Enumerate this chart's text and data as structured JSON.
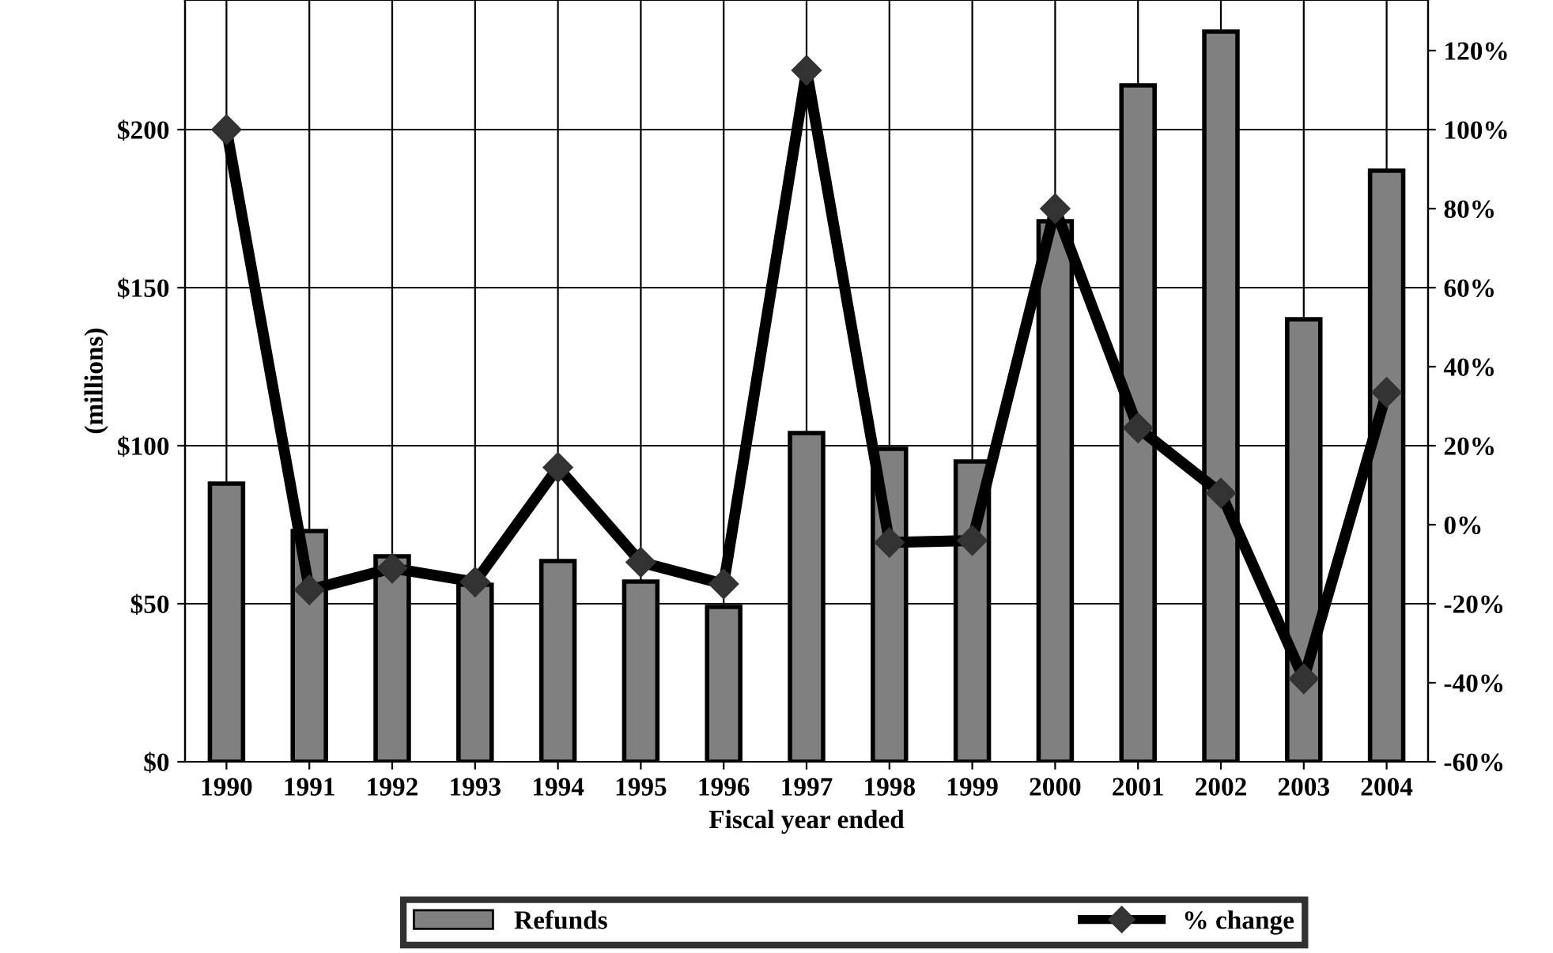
{
  "chart_data": {
    "type": "bar",
    "xlabel": "Fiscal year ended",
    "ylabel": "(millions)",
    "categories": [
      "1990",
      "1991",
      "1992",
      "1993",
      "1994",
      "1995",
      "1996",
      "1997",
      "1998",
      "1999",
      "2000",
      "2001",
      "2002",
      "2003",
      "2004"
    ],
    "series": [
      {
        "name": "Refunds",
        "color": "#808080",
        "values": [
          88,
          73,
          65,
          56,
          63.5,
          57,
          49,
          104,
          99,
          95,
          171,
          214,
          231,
          140,
          187
        ]
      },
      {
        "name": "% change",
        "type": "line",
        "axis": "y2",
        "color": "#000000",
        "marker": "diamond",
        "values": [
          100,
          -16.5,
          -11,
          -14.5,
          14.5,
          -9.5,
          -15,
          115,
          -4.5,
          -4,
          80,
          24.5,
          8,
          -39,
          33.5
        ]
      }
    ],
    "ylim": [
      0,
      241
    ],
    "yticks": [
      {
        "value": 0,
        "label": "$0"
      },
      {
        "value": 50,
        "label": "$50"
      },
      {
        "value": 100,
        "label": "$100"
      },
      {
        "value": 150,
        "label": "$150"
      },
      {
        "value": 200,
        "label": "$200"
      }
    ],
    "y2lim": [
      -60,
      132.8
    ],
    "y2ticks": [
      {
        "value": -60,
        "label": "-60%"
      },
      {
        "value": -40,
        "label": "-40%"
      },
      {
        "value": -20,
        "label": "-20%"
      },
      {
        "value": 0,
        "label": "0%"
      },
      {
        "value": 20,
        "label": "20%"
      },
      {
        "value": 40,
        "label": "40%"
      },
      {
        "value": 60,
        "label": "60%"
      },
      {
        "value": 80,
        "label": "80%"
      },
      {
        "value": 100,
        "label": "100%"
      },
      {
        "value": 120,
        "label": "120%"
      }
    ],
    "grid": true,
    "legend": "bottom"
  }
}
